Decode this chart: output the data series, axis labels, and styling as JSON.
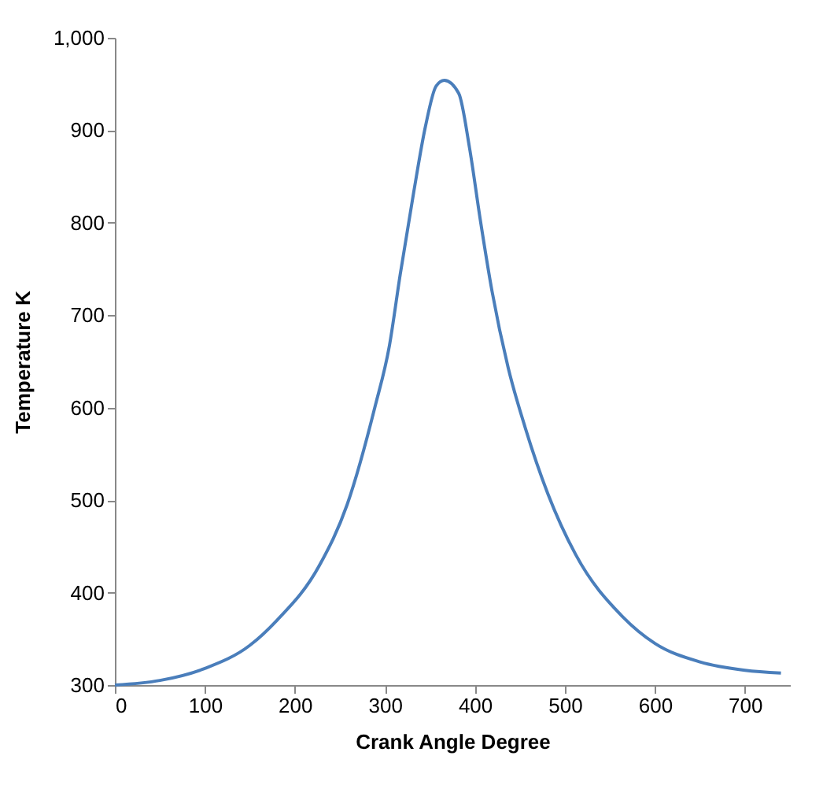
{
  "chart_data": {
    "type": "line",
    "xlabel": "Crank Angle Degree",
    "ylabel": "Temperature K",
    "xlim": [
      0,
      750
    ],
    "xticks": [
      0,
      100,
      200,
      300,
      400,
      500,
      600,
      700
    ],
    "ylim": [
      300,
      1000
    ],
    "yticks": [
      300,
      400,
      500,
      600,
      700,
      800,
      900,
      {
        "value": 1000,
        "label": "1,000"
      }
    ],
    "grid": false,
    "marker": "none",
    "line_style": "solid",
    "series": [
      {
        "color": "#4a7ebb",
        "x": [
          0,
          50,
          100,
          150,
          180,
          227,
          258,
          289,
          305,
          317,
          332,
          345,
          357,
          366,
          382,
          394,
          406,
          419,
          437,
          456,
          481,
          512,
          564,
          600,
          650,
          700,
          740
        ],
        "values": [
          300,
          305,
          318,
          343,
          370,
          429,
          495,
          601,
          667,
          744,
          833,
          904,
          948,
          954,
          940,
          881,
          803,
          726,
          643,
          578,
          507,
          441,
          374,
          345,
          325,
          316,
          313
        ]
      }
    ]
  }
}
